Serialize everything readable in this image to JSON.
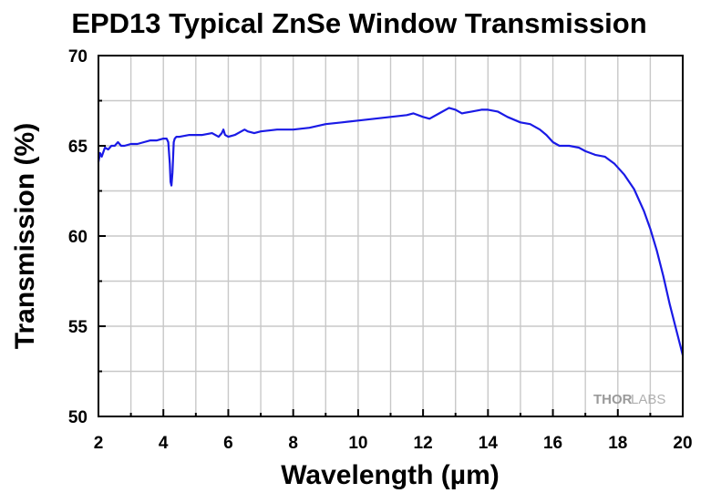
{
  "chart_data": {
    "type": "line",
    "title": "EPD13 Typical ZnSe Window Transmission",
    "xlabel": "Wavelength (µm)",
    "ylabel": "Transmission (%)",
    "xlim": [
      2,
      20
    ],
    "ylim": [
      50,
      70
    ],
    "xticks": [
      2,
      4,
      6,
      8,
      10,
      12,
      14,
      16,
      18,
      20
    ],
    "yticks": [
      50,
      55,
      60,
      65,
      70
    ],
    "grid": true,
    "legend": "none",
    "series": [
      {
        "color": "#1a1ae6",
        "x": [
          2.0,
          2.05,
          2.1,
          2.2,
          2.3,
          2.4,
          2.5,
          2.6,
          2.7,
          2.8,
          3.0,
          3.2,
          3.4,
          3.6,
          3.8,
          4.0,
          4.1,
          4.15,
          4.2,
          4.22,
          4.25,
          4.28,
          4.32,
          4.35,
          4.4,
          4.5,
          4.8,
          5.0,
          5.2,
          5.5,
          5.7,
          5.8,
          5.85,
          5.9,
          6.0,
          6.2,
          6.4,
          6.5,
          6.6,
          6.8,
          7.0,
          7.5,
          8.0,
          8.5,
          9.0,
          9.5,
          10.0,
          10.5,
          11.0,
          11.5,
          11.7,
          12.0,
          12.2,
          12.5,
          12.8,
          13.0,
          13.2,
          13.5,
          13.8,
          14.0,
          14.3,
          14.6,
          15.0,
          15.3,
          15.6,
          15.8,
          16.0,
          16.2,
          16.5,
          16.8,
          17.0,
          17.3,
          17.6,
          17.9,
          18.2,
          18.5,
          18.8,
          19.0,
          19.2,
          19.4,
          19.6,
          19.8,
          20.0
        ],
        "y": [
          64.1,
          64.6,
          64.4,
          64.9,
          64.8,
          65.0,
          65.0,
          65.2,
          65.0,
          65.0,
          65.1,
          65.1,
          65.2,
          65.3,
          65.3,
          65.4,
          65.4,
          65.2,
          64.0,
          63.0,
          62.8,
          63.5,
          65.2,
          65.4,
          65.5,
          65.5,
          65.6,
          65.6,
          65.6,
          65.7,
          65.5,
          65.7,
          65.9,
          65.6,
          65.5,
          65.6,
          65.8,
          65.9,
          65.8,
          65.7,
          65.8,
          65.9,
          65.9,
          66.0,
          66.2,
          66.3,
          66.4,
          66.5,
          66.6,
          66.7,
          66.8,
          66.6,
          66.5,
          66.8,
          67.1,
          67.0,
          66.8,
          66.9,
          67.0,
          67.0,
          66.9,
          66.6,
          66.3,
          66.2,
          65.9,
          65.6,
          65.2,
          65.0,
          65.0,
          64.9,
          64.7,
          64.5,
          64.4,
          64.0,
          63.4,
          62.6,
          61.4,
          60.4,
          59.2,
          57.8,
          56.2,
          54.8,
          53.4
        ]
      }
    ]
  },
  "watermark": {
    "part1": "THOR",
    "part2": "LABS"
  }
}
